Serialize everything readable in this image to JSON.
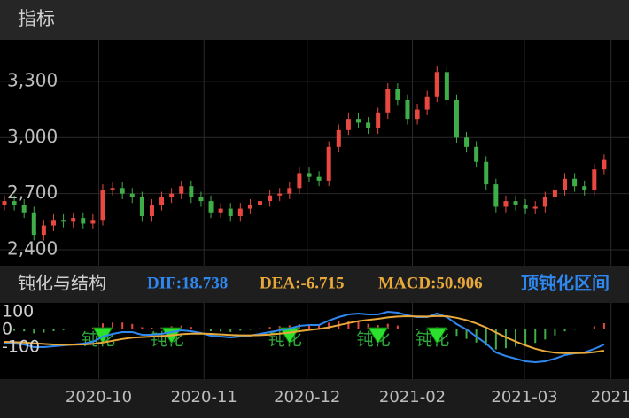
{
  "header": {
    "title": "指标"
  },
  "chart_data": [
    {
      "type": "candlestick",
      "up_color": "#e8483f",
      "down_color": "#3fae49",
      "grid": true,
      "xlim": [
        0,
        62
      ],
      "ylim": [
        2315,
        3522
      ],
      "yticks": [
        {
          "value": 2400,
          "label": "2,400"
        },
        {
          "value": 2700,
          "label": "2,700"
        },
        {
          "value": 3000,
          "label": "3,000"
        },
        {
          "value": 3300,
          "label": "3,300"
        }
      ],
      "open": [
        2640,
        2660,
        2640,
        2600,
        2480,
        2530,
        2560,
        2550,
        2570,
        2540,
        2560,
        2720,
        2730,
        2700,
        2680,
        2580,
        2640,
        2680,
        2700,
        2740,
        2680,
        2660,
        2600,
        2620,
        2580,
        2620,
        2640,
        2660,
        2690,
        2700,
        2730,
        2810,
        2790,
        2770,
        2950,
        3040,
        3100,
        3080,
        3050,
        3130,
        3260,
        3200,
        3100,
        3150,
        3220,
        3350,
        3200,
        3000,
        2950,
        2870,
        2750,
        2630,
        2660,
        2640,
        2620,
        2630,
        2680,
        2720,
        2780,
        2740,
        2720,
        2830
      ],
      "high": [
        2690,
        2690,
        2670,
        2630,
        2560,
        2590,
        2590,
        2600,
        2600,
        2590,
        2750,
        2760,
        2760,
        2730,
        2710,
        2670,
        2710,
        2730,
        2770,
        2770,
        2710,
        2690,
        2650,
        2650,
        2650,
        2670,
        2690,
        2720,
        2730,
        2760,
        2840,
        2840,
        2820,
        2980,
        3070,
        3130,
        3130,
        3110,
        3160,
        3290,
        3290,
        3230,
        3180,
        3250,
        3380,
        3380,
        3230,
        3030,
        2980,
        2900,
        2780,
        2690,
        2690,
        2670,
        2660,
        2710,
        2750,
        2810,
        2810,
        2770,
        2860,
        2910
      ],
      "low": [
        2610,
        2610,
        2570,
        2450,
        2450,
        2500,
        2520,
        2520,
        2510,
        2510,
        2530,
        2690,
        2670,
        2650,
        2550,
        2550,
        2610,
        2650,
        2670,
        2650,
        2630,
        2570,
        2570,
        2550,
        2550,
        2590,
        2610,
        2630,
        2660,
        2670,
        2700,
        2760,
        2740,
        2740,
        2920,
        3010,
        3050,
        3020,
        3020,
        3100,
        3170,
        3070,
        3070,
        3120,
        3190,
        3170,
        2970,
        2920,
        2840,
        2720,
        2600,
        2600,
        2610,
        2590,
        2590,
        2600,
        2650,
        2690,
        2710,
        2690,
        2690,
        2800
      ],
      "close": [
        2660,
        2640,
        2600,
        2480,
        2530,
        2560,
        2550,
        2570,
        2540,
        2560,
        2720,
        2730,
        2700,
        2680,
        2580,
        2640,
        2680,
        2700,
        2740,
        2680,
        2660,
        2600,
        2620,
        2580,
        2620,
        2640,
        2660,
        2690,
        2700,
        2730,
        2810,
        2790,
        2770,
        2950,
        3040,
        3100,
        3080,
        3050,
        3130,
        3260,
        3200,
        3100,
        3150,
        3220,
        3350,
        3200,
        3000,
        2950,
        2870,
        2750,
        2630,
        2660,
        2640,
        2620,
        2630,
        2680,
        2720,
        2780,
        2740,
        2720,
        2830,
        2880
      ]
    },
    {
      "type": "macd",
      "title": "钝化与结构",
      "status": "顶钝化区间",
      "status_color": "#2f88f0",
      "grid": true,
      "xlim": [
        0,
        62
      ],
      "xticks": [
        {
          "value": 9.6,
          "label": "2020-10"
        },
        {
          "value": 20.3,
          "label": "2020-11"
        },
        {
          "value": 30.8,
          "label": "2020-12"
        },
        {
          "value": 41.5,
          "label": "2021-02"
        },
        {
          "value": 52.9,
          "label": "2021-03"
        },
        {
          "value": 61.7,
          "label": "2021"
        }
      ],
      "ylim": [
        -280,
        150
      ],
      "yticks": [
        -100,
        0,
        100
      ],
      "series": [
        {
          "name": "DIF:18.738",
          "color": "#2f88f0",
          "values": [
            -80,
            -80,
            -85,
            -100,
            -100,
            -95,
            -90,
            -85,
            -80,
            -70,
            -40,
            -25,
            -15,
            -15,
            -30,
            -30,
            -25,
            -15,
            -5,
            -10,
            -20,
            -35,
            -40,
            -45,
            -40,
            -35,
            -25,
            -15,
            -5,
            5,
            20,
            25,
            25,
            50,
            70,
            85,
            90,
            85,
            85,
            100,
            95,
            80,
            70,
            70,
            90,
            70,
            30,
            0,
            -40,
            -80,
            -130,
            -150,
            -165,
            -180,
            -185,
            -180,
            -165,
            -145,
            -135,
            -130,
            -110,
            -85
          ]
        },
        {
          "name": "DEA:-6.715",
          "color": "#e8a93a",
          "values": [
            -70,
            -72,
            -74,
            -78,
            -82,
            -85,
            -86,
            -86,
            -85,
            -82,
            -74,
            -64,
            -54,
            -46,
            -43,
            -40,
            -37,
            -33,
            -27,
            -24,
            -23,
            -25,
            -28,
            -31,
            -33,
            -33,
            -32,
            -29,
            -24,
            -18,
            -10,
            -3,
            3,
            12,
            24,
            36,
            47,
            54,
            60,
            68,
            73,
            75,
            74,
            73,
            76,
            75,
            66,
            53,
            34,
            11,
            -17,
            -44,
            -68,
            -90,
            -109,
            -123,
            -131,
            -134,
            -134,
            -133,
            -128,
            -120
          ]
        },
        {
          "name": "MACD:50.906",
          "color": "#e8a93a",
          "up_color": "#e8483f",
          "down_color": "#3fae49",
          "values": [
            -10,
            -8,
            -11,
            -22,
            -18,
            -10,
            -4,
            1,
            5,
            12,
            34,
            39,
            39,
            31,
            13,
            10,
            12,
            18,
            22,
            14,
            3,
            -10,
            -12,
            -14,
            -7,
            -2,
            7,
            14,
            19,
            23,
            30,
            28,
            22,
            38,
            46,
            49,
            43,
            31,
            25,
            32,
            22,
            5,
            -4,
            -3,
            14,
            -5,
            -36,
            -53,
            -74,
            -91,
            -113,
            -106,
            -97,
            -90,
            -76,
            -57,
            -34,
            -11,
            -1,
            3,
            18,
            35
          ]
        }
      ],
      "signals": [
        {
          "x": 10,
          "label": "钝化"
        },
        {
          "x": 17,
          "label": "钝化"
        },
        {
          "x": 29,
          "label": "钝化"
        },
        {
          "x": 38,
          "label": "钝化"
        },
        {
          "x": 44,
          "label": "钝化"
        }
      ]
    }
  ]
}
